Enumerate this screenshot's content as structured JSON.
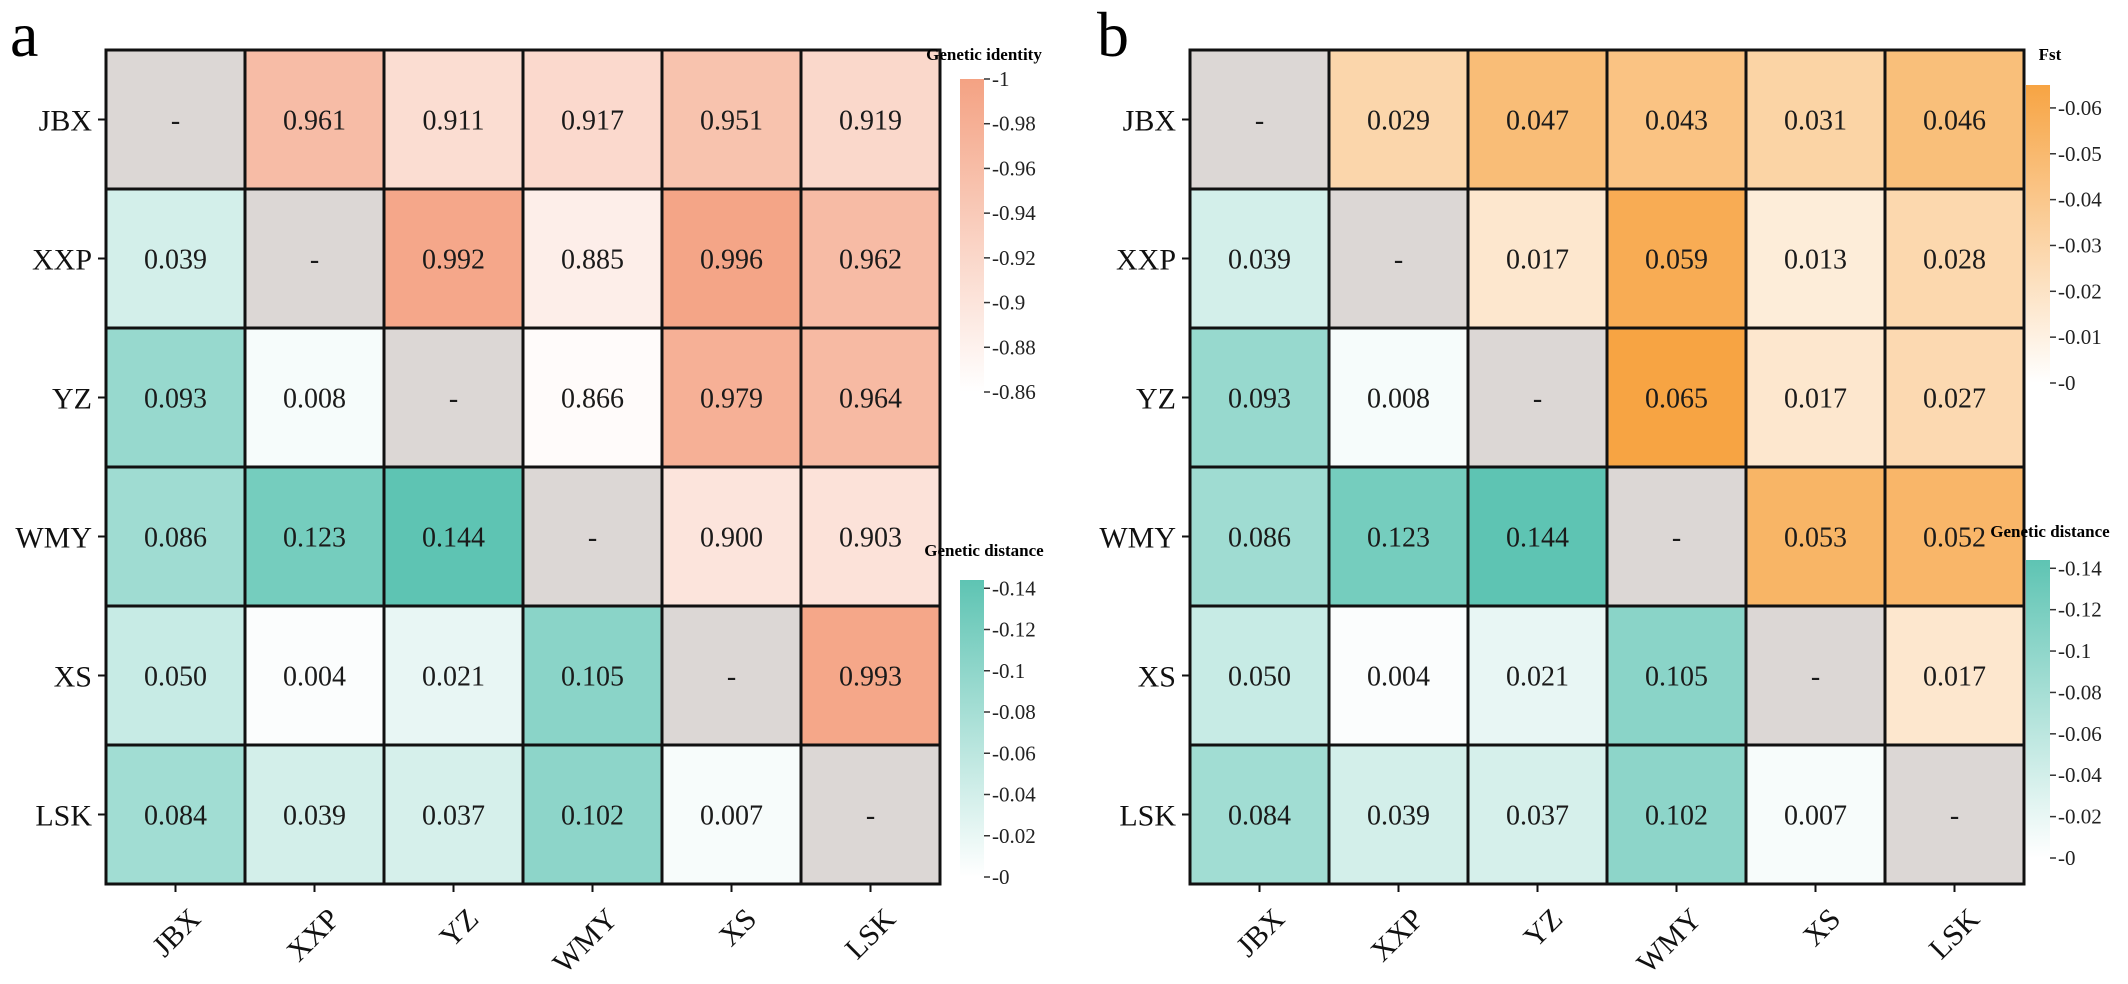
{
  "panels": [
    {
      "letter": "a",
      "labels": [
        "JBX",
        "XXP",
        "YZ",
        "WMY",
        "XS",
        "LSK"
      ],
      "matrix": [
        [
          "-",
          "0.961",
          "0.911",
          "0.917",
          "0.951",
          "0.919"
        ],
        [
          "0.039",
          "-",
          "0.992",
          "0.885",
          "0.996",
          "0.962"
        ],
        [
          "0.093",
          "0.008",
          "-",
          "0.866",
          "0.979",
          "0.964"
        ],
        [
          "0.086",
          "0.123",
          "0.144",
          "-",
          "0.900",
          "0.903"
        ],
        [
          "0.050",
          "0.004",
          "0.021",
          "0.105",
          "-",
          "0.993"
        ],
        [
          "0.084",
          "0.039",
          "0.037",
          "0.102",
          "0.007",
          "-"
        ]
      ],
      "upper_colorbar": {
        "title": "Genetic identity",
        "color": "#f4a283",
        "range": [
          0.86,
          1.0
        ],
        "ticks": [
          "1",
          "0.98",
          "0.96",
          "0.94",
          "0.92",
          "0.9",
          "0.88",
          "0.86"
        ]
      },
      "lower_colorbar": {
        "title": "Genetic distance",
        "color": "#5ec4b3",
        "range": [
          0,
          0.144
        ],
        "ticks": [
          "0.14",
          "0.12",
          "0.1",
          "0.08",
          "0.06",
          "0.04",
          "0.02",
          "0"
        ]
      }
    },
    {
      "letter": "b",
      "labels": [
        "JBX",
        "XXP",
        "YZ",
        "WMY",
        "XS",
        "LSK"
      ],
      "matrix": [
        [
          "-",
          "0.029",
          "0.047",
          "0.043",
          "0.031",
          "0.046"
        ],
        [
          "0.039",
          "-",
          "0.017",
          "0.059",
          "0.013",
          "0.028"
        ],
        [
          "0.093",
          "0.008",
          "-",
          "0.065",
          "0.017",
          "0.027"
        ],
        [
          "0.086",
          "0.123",
          "0.144",
          "-",
          "0.053",
          "0.052"
        ],
        [
          "0.050",
          "0.004",
          "0.021",
          "0.105",
          "-",
          "0.017"
        ],
        [
          "0.084",
          "0.039",
          "0.037",
          "0.102",
          "0.007",
          "-"
        ]
      ],
      "upper_colorbar": {
        "title": "Fst",
        "color": "#f7a443",
        "range": [
          0,
          0.065
        ],
        "ticks": [
          "0.06",
          "0.05",
          "0.04",
          "0.03",
          "0.02",
          "0.01",
          "0"
        ]
      },
      "lower_colorbar": {
        "title": "Genetic distance",
        "color": "#5ec4b3",
        "range": [
          0,
          0.144
        ],
        "ticks": [
          "0.14",
          "0.12",
          "0.1",
          "0.08",
          "0.06",
          "0.04",
          "0.02",
          "0"
        ]
      }
    }
  ],
  "chart_data": [
    {
      "type": "heatmap",
      "title": "a",
      "labels": [
        "JBX",
        "XXP",
        "YZ",
        "WMY",
        "XS",
        "LSK"
      ],
      "upper_triangle": "Genetic identity",
      "lower_triangle": "Genetic distance",
      "values": [
        [
          null,
          0.961,
          0.911,
          0.917,
          0.951,
          0.919
        ],
        [
          0.039,
          null,
          0.992,
          0.885,
          0.996,
          0.962
        ],
        [
          0.093,
          0.008,
          null,
          0.866,
          0.979,
          0.964
        ],
        [
          0.086,
          0.123,
          0.144,
          null,
          0.9,
          0.903
        ],
        [
          0.05,
          0.004,
          0.021,
          0.105,
          null,
          0.993
        ],
        [
          0.084,
          0.039,
          0.037,
          0.102,
          0.007,
          null
        ]
      ]
    },
    {
      "type": "heatmap",
      "title": "b",
      "labels": [
        "JBX",
        "XXP",
        "YZ",
        "WMY",
        "XS",
        "LSK"
      ],
      "upper_triangle": "Fst",
      "lower_triangle": "Genetic distance",
      "values": [
        [
          null,
          0.029,
          0.047,
          0.043,
          0.031,
          0.046
        ],
        [
          0.039,
          null,
          0.017,
          0.059,
          0.013,
          0.028
        ],
        [
          0.093,
          0.008,
          null,
          0.065,
          0.017,
          0.027
        ],
        [
          0.086,
          0.123,
          0.144,
          null,
          0.053,
          0.052
        ],
        [
          0.05,
          0.004,
          0.021,
          0.105,
          null,
          0.017
        ],
        [
          0.084,
          0.039,
          0.037,
          0.102,
          0.007,
          null
        ]
      ]
    }
  ],
  "colors": {
    "diagonal": "#dcd7d5",
    "border": "#111111",
    "low": "#ffffff"
  }
}
